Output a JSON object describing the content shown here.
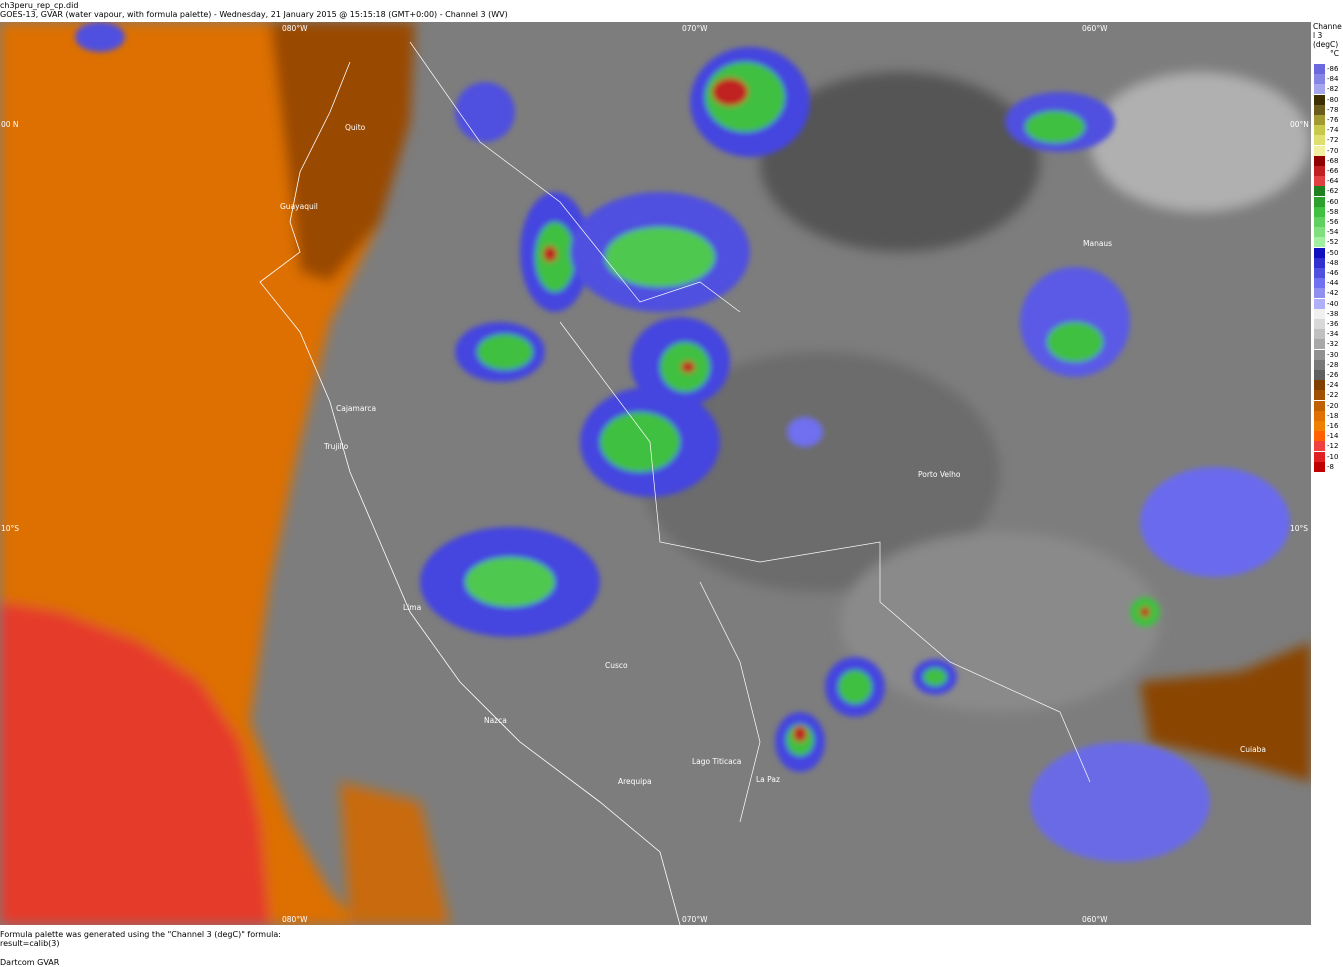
{
  "header": {
    "filename": "ch3peru_rep_cp.did",
    "title": "GOES-13, GVAR (water vapour, with formula palette) - Wednesday, 21 January 2015 @ 15:15:18 (GMT+0:00) - Channel 3 (WV)"
  },
  "grid_labels": {
    "top": [
      "080°W",
      "070°W",
      "060°W"
    ],
    "bottom": [
      "080°W",
      "070°W",
      "060°W"
    ],
    "left": [
      "00 N",
      "10°S"
    ],
    "right": [
      "00°N",
      "10°S"
    ]
  },
  "cities": [
    "Quito",
    "Guayaquil",
    "Cajamarca",
    "Trujillo",
    "Lima",
    "Cusco",
    "Nazca",
    "Arequipa",
    "Lago Titicaca",
    "La Paz",
    "Porto Velho",
    "Manaus",
    "Cuiaba"
  ],
  "legend": {
    "title": "Channel 3 (degC)",
    "unit": "°C",
    "entries": [
      {
        "value": "-86",
        "color": "#6a6ade"
      },
      {
        "value": "-84",
        "color": "#8686e6"
      },
      {
        "value": "-82",
        "color": "#a6a6ee"
      },
      {
        "value": "-80",
        "color": "#3c3000"
      },
      {
        "value": "-78",
        "color": "#6c5c1c"
      },
      {
        "value": "-76",
        "color": "#a09a30"
      },
      {
        "value": "-74",
        "color": "#c8c84c"
      },
      {
        "value": "-72",
        "color": "#e0e070"
      },
      {
        "value": "-70",
        "color": "#f0f0a0"
      },
      {
        "value": "-68",
        "color": "#900000"
      },
      {
        "value": "-66",
        "color": "#c02020"
      },
      {
        "value": "-64",
        "color": "#e04040"
      },
      {
        "value": "-62",
        "color": "#1e801e"
      },
      {
        "value": "-60",
        "color": "#2ea02e"
      },
      {
        "value": "-58",
        "color": "#40c040"
      },
      {
        "value": "-56",
        "color": "#60d060"
      },
      {
        "value": "-54",
        "color": "#80e080"
      },
      {
        "value": "-52",
        "color": "#a0f0a0"
      },
      {
        "value": "-50",
        "color": "#1010c0"
      },
      {
        "value": "-48",
        "color": "#3030d0"
      },
      {
        "value": "-46",
        "color": "#5050e0"
      },
      {
        "value": "-44",
        "color": "#7070f0"
      },
      {
        "value": "-42",
        "color": "#9090f0"
      },
      {
        "value": "-40",
        "color": "#b0b0f8"
      },
      {
        "value": "-38",
        "color": "#f0f0f0"
      },
      {
        "value": "-36",
        "color": "#d8d8d8"
      },
      {
        "value": "-34",
        "color": "#c0c0c0"
      },
      {
        "value": "-32",
        "color": "#a8a8a8"
      },
      {
        "value": "-30",
        "color": "#909090"
      },
      {
        "value": "-28",
        "color": "#787878"
      },
      {
        "value": "-26",
        "color": "#606060"
      },
      {
        "value": "-24",
        "color": "#804000"
      },
      {
        "value": "-22",
        "color": "#a05000"
      },
      {
        "value": "-20",
        "color": "#c06000"
      },
      {
        "value": "-18",
        "color": "#e07000"
      },
      {
        "value": "-16",
        "color": "#f08000"
      },
      {
        "value": "-14",
        "color": "#ff6000"
      },
      {
        "value": "-12",
        "color": "#f04040"
      },
      {
        "value": "-10",
        "color": "#e02020"
      },
      {
        "value": "-8",
        "color": "#c00000"
      }
    ]
  },
  "footer": {
    "line1": "Formula palette was generated using the \"Channel 3 (degC)\" formula:",
    "line2": "result=calib(3)",
    "credit": "Dartcom GVAR"
  }
}
